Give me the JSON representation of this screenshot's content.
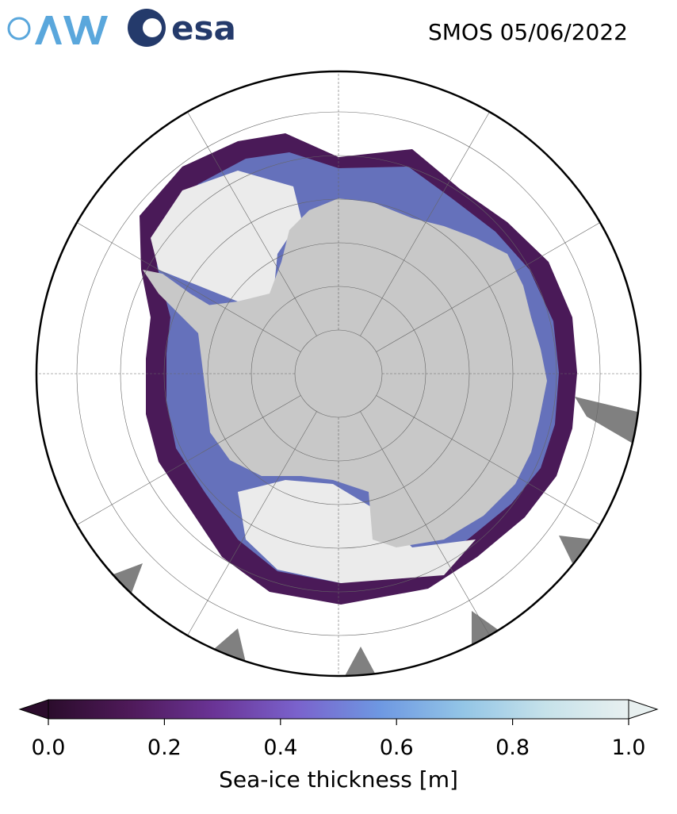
{
  "header": {
    "logo_text": "esa",
    "title": "SMOS 05/06/2022"
  },
  "colorbar": {
    "label": "Sea-ice thickness [m]",
    "lim": [
      0,
      1
    ],
    "ticks": [
      {
        "value": 0,
        "label": "0.0"
      },
      {
        "value": 0.2,
        "label": "0.2"
      },
      {
        "value": 0.4,
        "label": "0.4"
      },
      {
        "value": 0.6,
        "label": "0.6"
      },
      {
        "value": 0.8,
        "label": "0.8"
      },
      {
        "value": 1,
        "label": "1.0"
      }
    ],
    "colors": [
      "#2b0c2c",
      "#4f1a5a",
      "#6a3496",
      "#7a62cc",
      "#6e98e2",
      "#93c5e6",
      "#c6e2ea",
      "#e8f0f0"
    ]
  }
}
